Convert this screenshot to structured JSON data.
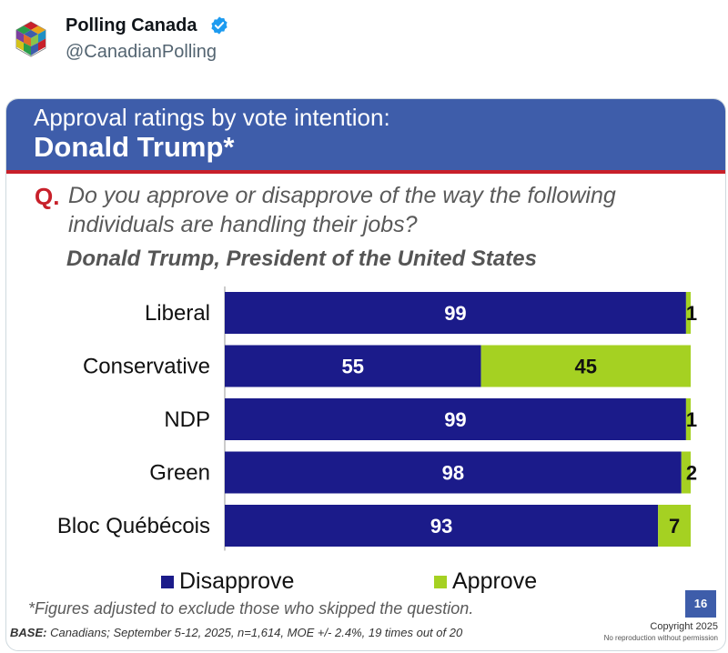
{
  "tweet": {
    "author_name": "Polling Canada",
    "handle": "@CanadianPolling"
  },
  "slide": {
    "banner_line1": "Approval ratings by vote intention:",
    "banner_line2": "Donald Trump*",
    "question_marker": "Q.",
    "question_text": "Do you approve or disapprove of the way the following individuals are handling their jobs?",
    "subtitle": "Donald Trump, President of the United States",
    "footnote": "*Figures adjusted to exclude those who skipped the question.",
    "base_label": "BASE:",
    "base_text": "Canadians; September 5-12, 2025, n=1,614, MOE +/- 2.4%, 19 times out of 20",
    "page_number": "16",
    "copyright": "Copyright 2025",
    "copyright_note": "No reproduction without permission"
  },
  "colors": {
    "disapprove": "#1b1b8a",
    "approve": "#a5d122",
    "banner": "#3e5daa",
    "accent_red": "#c8202a"
  },
  "chart_data": {
    "type": "bar",
    "orientation": "horizontal",
    "stacked": true,
    "title": "Donald Trump, President of the United States",
    "categories": [
      "Liberal",
      "Conservative",
      "NDP",
      "Green",
      "Bloc Québécois"
    ],
    "series": [
      {
        "name": "Disapprove",
        "values": [
          99,
          55,
          99,
          98,
          93
        ]
      },
      {
        "name": "Approve",
        "values": [
          1,
          45,
          1,
          2,
          7
        ]
      }
    ],
    "xlim": [
      0,
      100
    ],
    "legend": [
      "Disapprove",
      "Approve"
    ],
    "legend_position": "bottom"
  }
}
